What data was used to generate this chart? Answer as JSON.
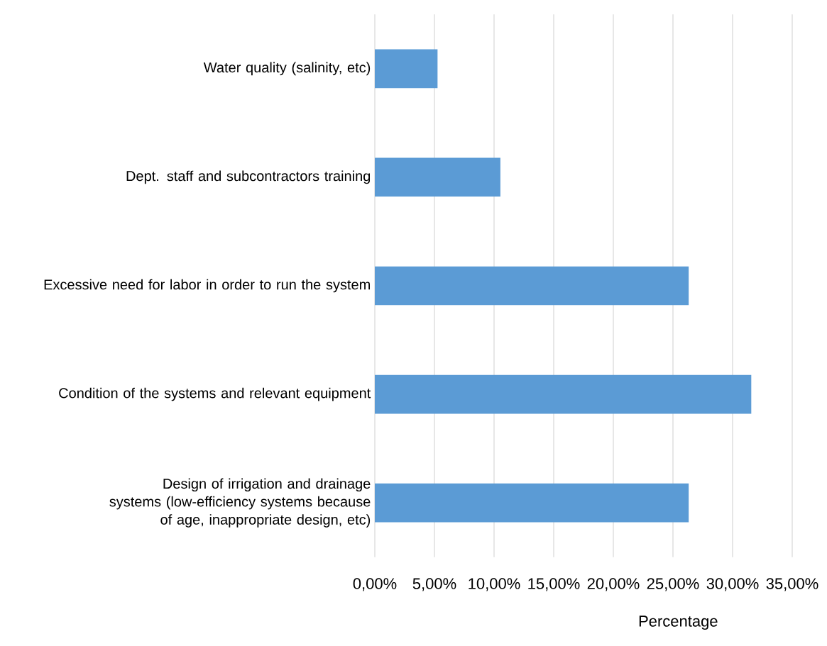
{
  "chart_data": {
    "type": "bar",
    "orientation": "horizontal",
    "categories": [
      "Water quality (salinity, etc)",
      "Dept. staff and subcontractors training",
      "Excessive need for labor in order to run the system",
      "Condition of the systems and relevant equipment",
      "Design of irrigation and drainage systems (low-efficiency systems because of age, inappropriate design, etc)"
    ],
    "values": [
      5.26,
      10.53,
      26.32,
      31.58,
      26.32
    ],
    "color": "#5b9bd5",
    "xlabel": "Percentage",
    "xlim": [
      0,
      35
    ],
    "xticks": [
      {
        "value": 0,
        "label": "0,00%"
      },
      {
        "value": 5,
        "label": "5,00%"
      },
      {
        "value": 10,
        "label": "10,00%"
      },
      {
        "value": 15,
        "label": "15,00%"
      },
      {
        "value": 20,
        "label": "20,00%"
      },
      {
        "value": 25,
        "label": "25,00%"
      },
      {
        "value": 30,
        "label": "30,00%"
      },
      {
        "value": 35,
        "label": "35,00%"
      }
    ],
    "grid": "x"
  }
}
